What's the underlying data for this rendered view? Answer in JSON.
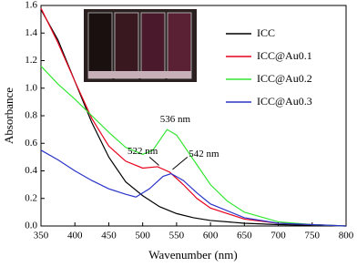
{
  "chart_data": {
    "type": "line",
    "x_label": "Wavenumber (nm)",
    "y_label": "Absorbance",
    "xlim": [
      350,
      800
    ],
    "xticks": [
      350,
      400,
      450,
      500,
      550,
      600,
      650,
      700,
      750,
      800
    ],
    "ylim": [
      0,
      1.6
    ],
    "yticks": [
      {
        "value": 0,
        "label": "0.0"
      },
      0.2,
      0.4,
      0.6,
      0.8,
      {
        "value": 1,
        "label": "1.0"
      },
      1.2,
      1.4,
      1.6
    ],
    "legend": "upper right",
    "annotations": [
      "536 nm",
      "522 nm",
      "542 nm"
    ],
    "series": [
      {
        "name": "ICC",
        "color": "#000000",
        "x": [
          350,
          375,
          400,
          425,
          450,
          475,
          500,
          525,
          550,
          575,
          600,
          650,
          700,
          750,
          800
        ],
        "values": [
          1.57,
          1.35,
          1.05,
          0.75,
          0.5,
          0.32,
          0.22,
          0.14,
          0.09,
          0.06,
          0.04,
          0.02,
          0.01,
          0.005,
          0
        ]
      },
      {
        "name": "ICC@Au0.1",
        "color": "#e8001c",
        "x": [
          350,
          375,
          400,
          425,
          450,
          475,
          500,
          522,
          540,
          560,
          580,
          600,
          650,
          700,
          750,
          800
        ],
        "values": [
          1.58,
          1.33,
          1.05,
          0.78,
          0.58,
          0.47,
          0.42,
          0.43,
          0.39,
          0.3,
          0.2,
          0.13,
          0.05,
          0.02,
          0.01,
          0
        ]
      },
      {
        "name": "ICC@Au0.2",
        "color": "#33e633",
        "x": [
          350,
          375,
          400,
          425,
          450,
          475,
          500,
          515,
          536,
          550,
          575,
          600,
          625,
          650,
          700,
          750,
          800
        ],
        "values": [
          1.16,
          1.03,
          0.92,
          0.8,
          0.68,
          0.57,
          0.52,
          0.55,
          0.7,
          0.66,
          0.48,
          0.3,
          0.18,
          0.1,
          0.03,
          0.01,
          0
        ]
      },
      {
        "name": "ICC@Au0.3",
        "color": "#2a34c8",
        "x": [
          350,
          375,
          400,
          425,
          450,
          475,
          490,
          510,
          530,
          542,
          560,
          580,
          600,
          650,
          700,
          750,
          800
        ],
        "values": [
          0.55,
          0.48,
          0.4,
          0.33,
          0.27,
          0.23,
          0.21,
          0.27,
          0.36,
          0.38,
          0.33,
          0.24,
          0.16,
          0.06,
          0.02,
          0.01,
          0
        ]
      }
    ]
  }
}
